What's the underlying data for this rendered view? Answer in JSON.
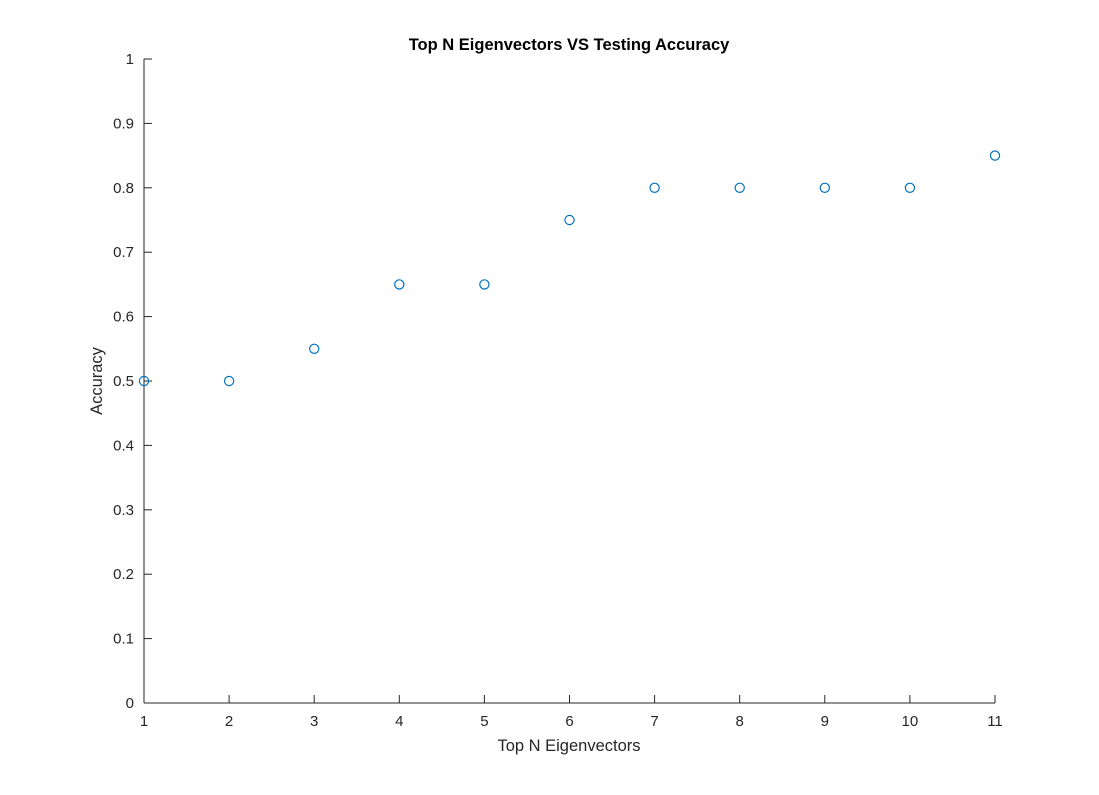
{
  "chart_data": {
    "type": "scatter",
    "title": "Top N Eigenvectors VS Testing Accuracy",
    "xlabel": "Top N Eigenvectors",
    "ylabel": "Accuracy",
    "xlim": [
      1,
      11
    ],
    "ylim": [
      0,
      1
    ],
    "xticks": [
      1,
      2,
      3,
      4,
      5,
      6,
      7,
      8,
      9,
      10,
      11
    ],
    "yticks": [
      0,
      0.1,
      0.2,
      0.3,
      0.4,
      0.5,
      0.6,
      0.7,
      0.8,
      0.9,
      1
    ],
    "xtick_labels": [
      "1",
      "2",
      "3",
      "4",
      "5",
      "6",
      "7",
      "8",
      "9",
      "10",
      "11"
    ],
    "ytick_labels": [
      "0",
      "0.1",
      "0.2",
      "0.3",
      "0.4",
      "0.5",
      "0.6",
      "0.7",
      "0.8",
      "0.9",
      "1"
    ],
    "grid": false,
    "marker": "open-circle",
    "series": [
      {
        "x": [
          1,
          2,
          3,
          4,
          5,
          6,
          7,
          8,
          9,
          10,
          11
        ],
        "y": [
          0.5,
          0.5,
          0.55,
          0.65,
          0.65,
          0.75,
          0.8,
          0.8,
          0.8,
          0.8,
          0.85
        ],
        "color": "#0072BD"
      }
    ]
  }
}
